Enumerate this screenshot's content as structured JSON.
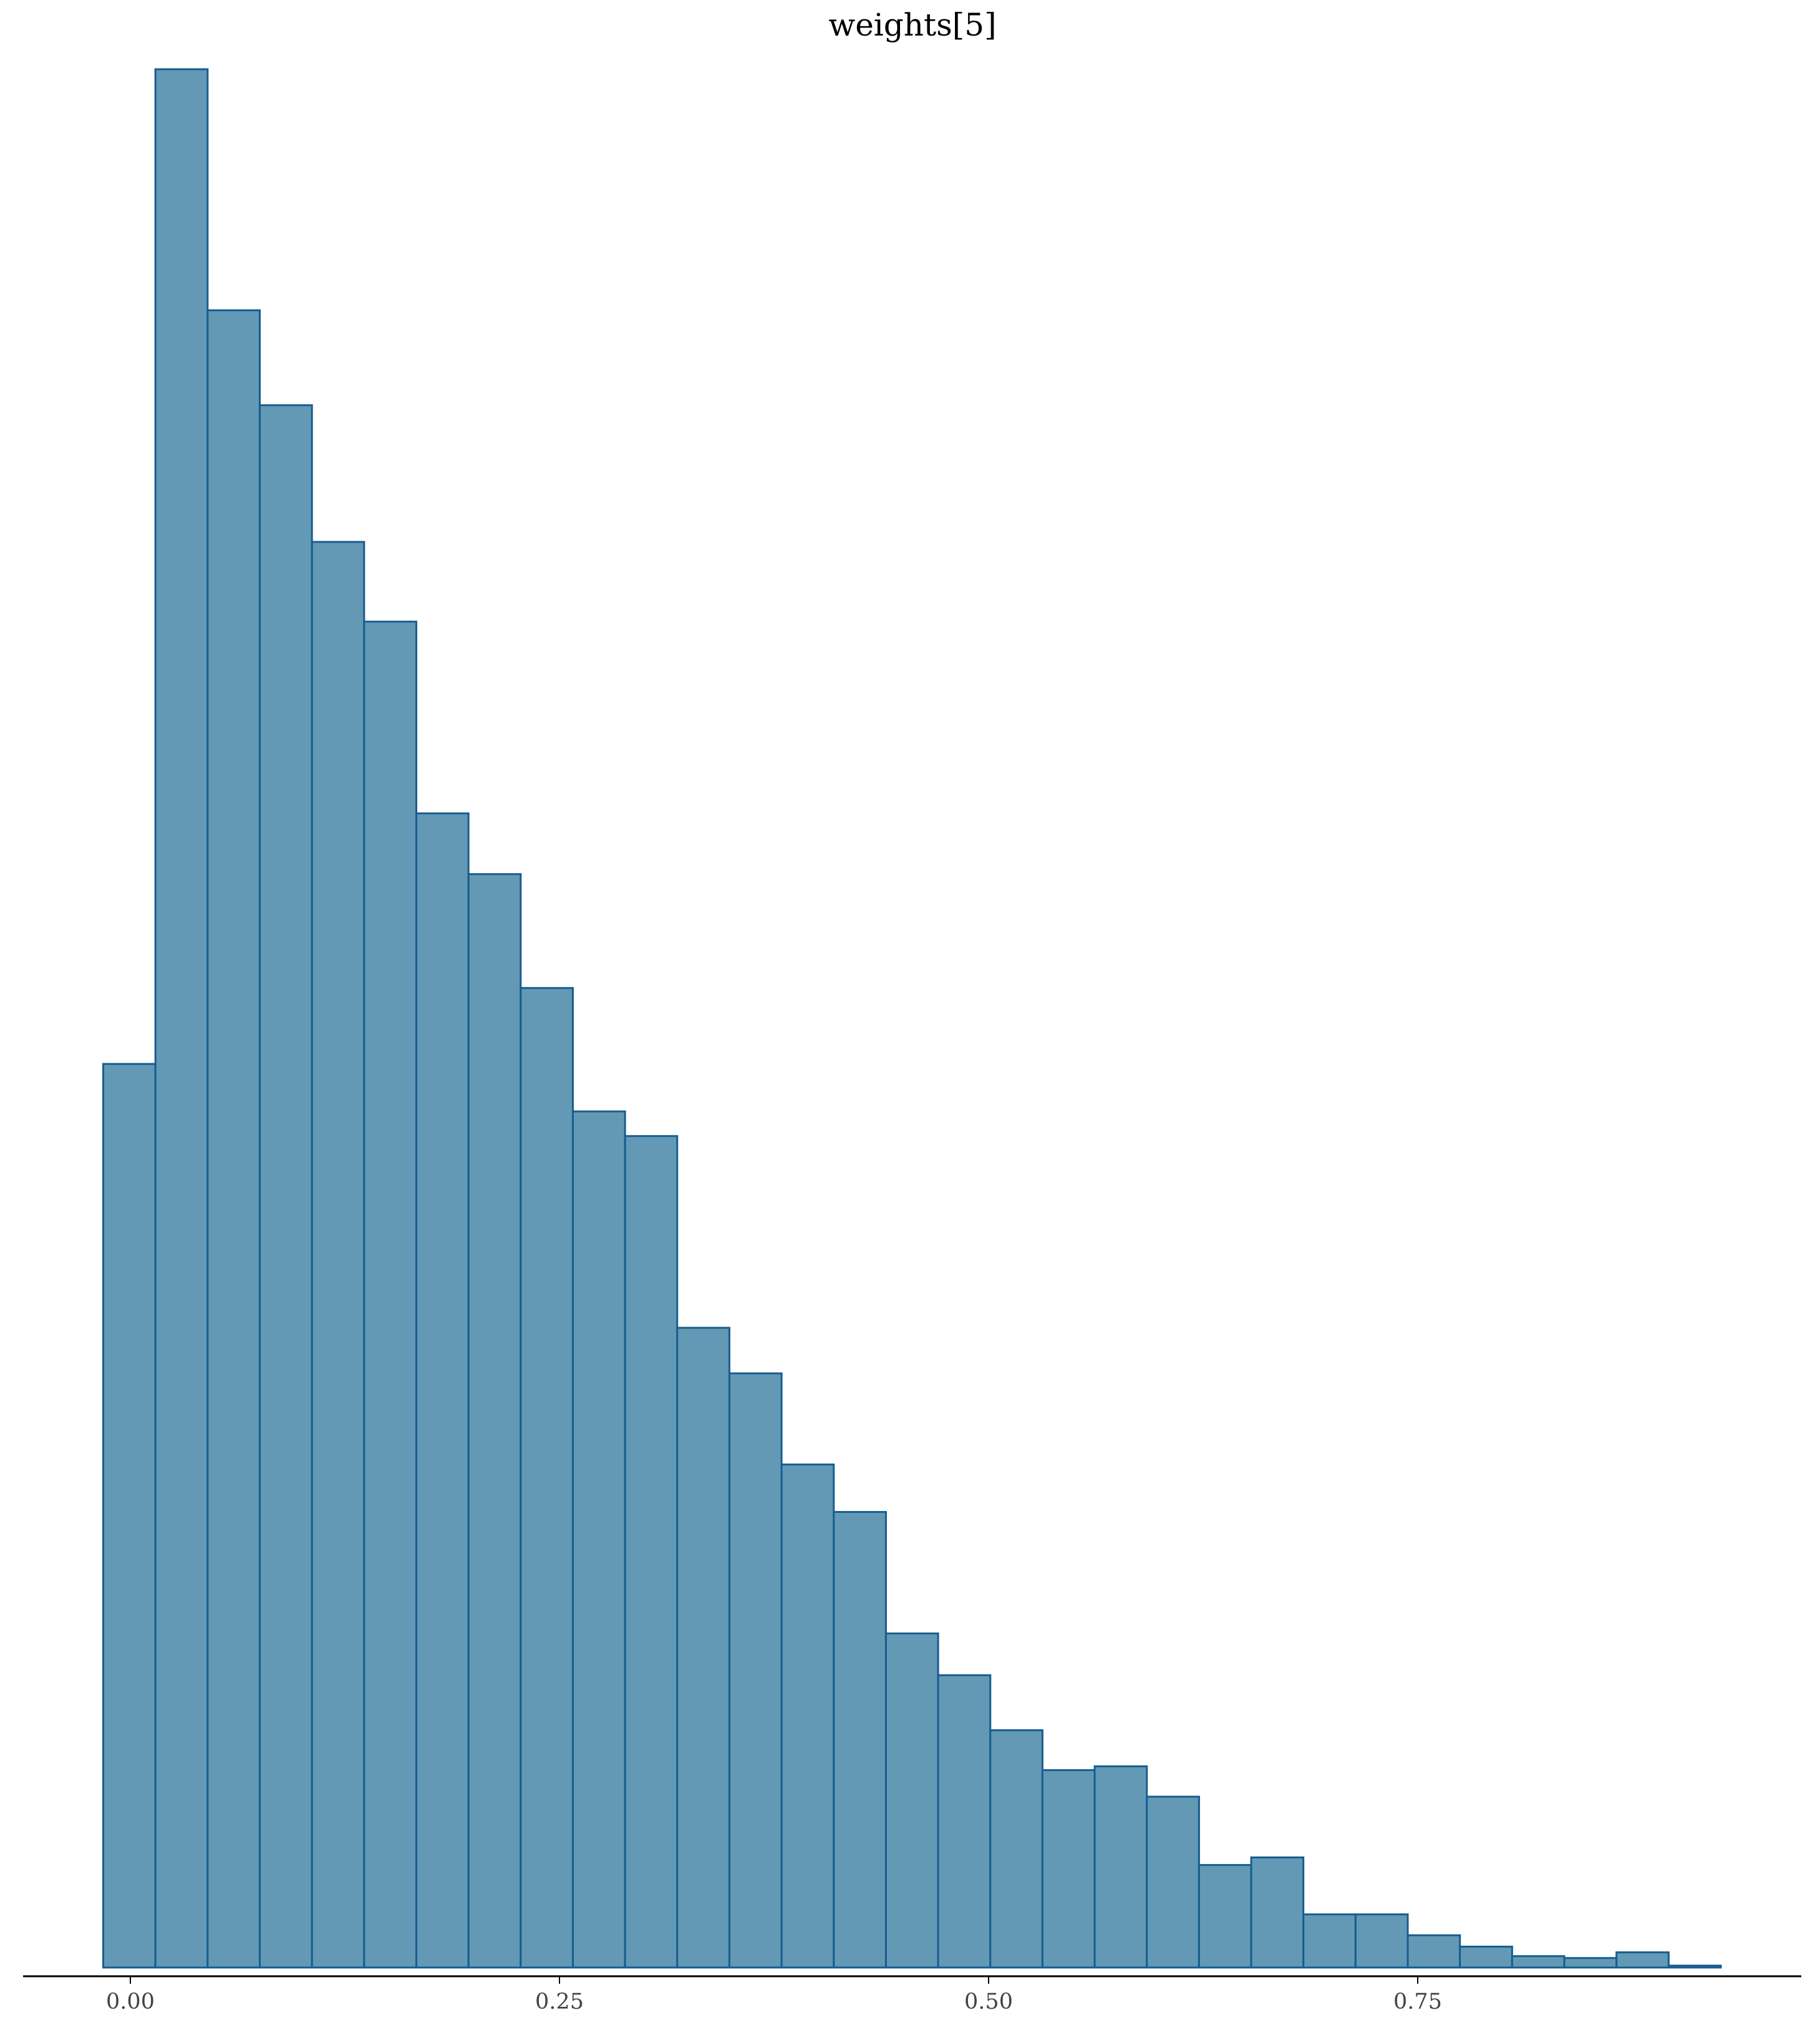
{
  "chart_data": {
    "type": "bar",
    "title": "weights[5]",
    "xlabel": "",
    "ylabel": "",
    "x_ticks": [
      {
        "value": 0.0,
        "label": "0.00"
      },
      {
        "value": 0.25,
        "label": "0.25"
      },
      {
        "value": 0.5,
        "label": "0.50"
      },
      {
        "value": 0.75,
        "label": "0.75"
      }
    ],
    "xlim": [
      -0.06,
      0.975
    ],
    "ylim": [
      0,
      1.0
    ],
    "grid": false,
    "y_axis_visible": false,
    "bin_edges": [
      -0.0158,
      0.0146,
      0.045,
      0.0754,
      0.1058,
      0.1362,
      0.1666,
      0.197,
      0.2274,
      0.2578,
      0.2882,
      0.3186,
      0.349,
      0.3794,
      0.4098,
      0.4402,
      0.4706,
      0.501,
      0.5314,
      0.5618,
      0.5922,
      0.6226,
      0.653,
      0.6834,
      0.7138,
      0.7442,
      0.7746,
      0.805,
      0.8354,
      0.8658,
      0.8962,
      0.9266
    ],
    "values": [
      0.476,
      1.0,
      0.873,
      0.823,
      0.751,
      0.709,
      0.608,
      0.576,
      0.516,
      0.451,
      0.438,
      0.337,
      0.313,
      0.265,
      0.24,
      0.176,
      0.154,
      0.125,
      0.104,
      0.106,
      0.09,
      0.054,
      0.058,
      0.028,
      0.028,
      0.017,
      0.011,
      0.006,
      0.005,
      0.008,
      0.001
    ],
    "colors": {
      "bar_fill": "#6399b5",
      "bar_edge": "#175d8f",
      "axis": "#000000",
      "tick_text": "#444444"
    }
  }
}
